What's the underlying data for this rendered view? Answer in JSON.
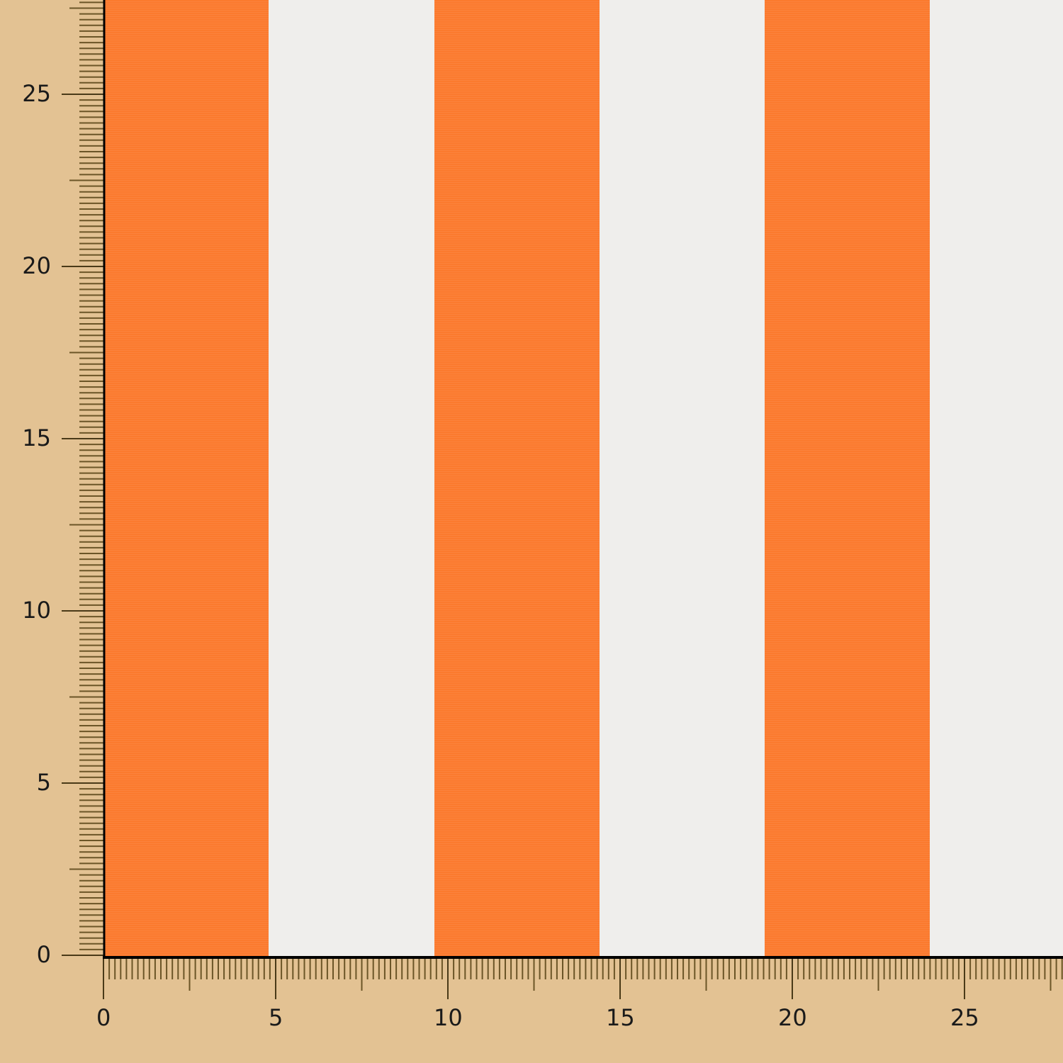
{
  "swatch": {
    "stripe_color": "#fb7a2e",
    "background_color": "#eeedeb",
    "stripe_width_units": 4.8,
    "stripes_start_units": [
      0,
      9.6,
      19.2
    ]
  },
  "ruler": {
    "background_color": "#e3c293",
    "x_labels": [
      "0",
      "5",
      "10",
      "15",
      "20",
      "25"
    ],
    "y_labels": [
      "0",
      "5",
      "10",
      "15",
      "20",
      "25"
    ],
    "ticks_per_5_units": 30
  }
}
